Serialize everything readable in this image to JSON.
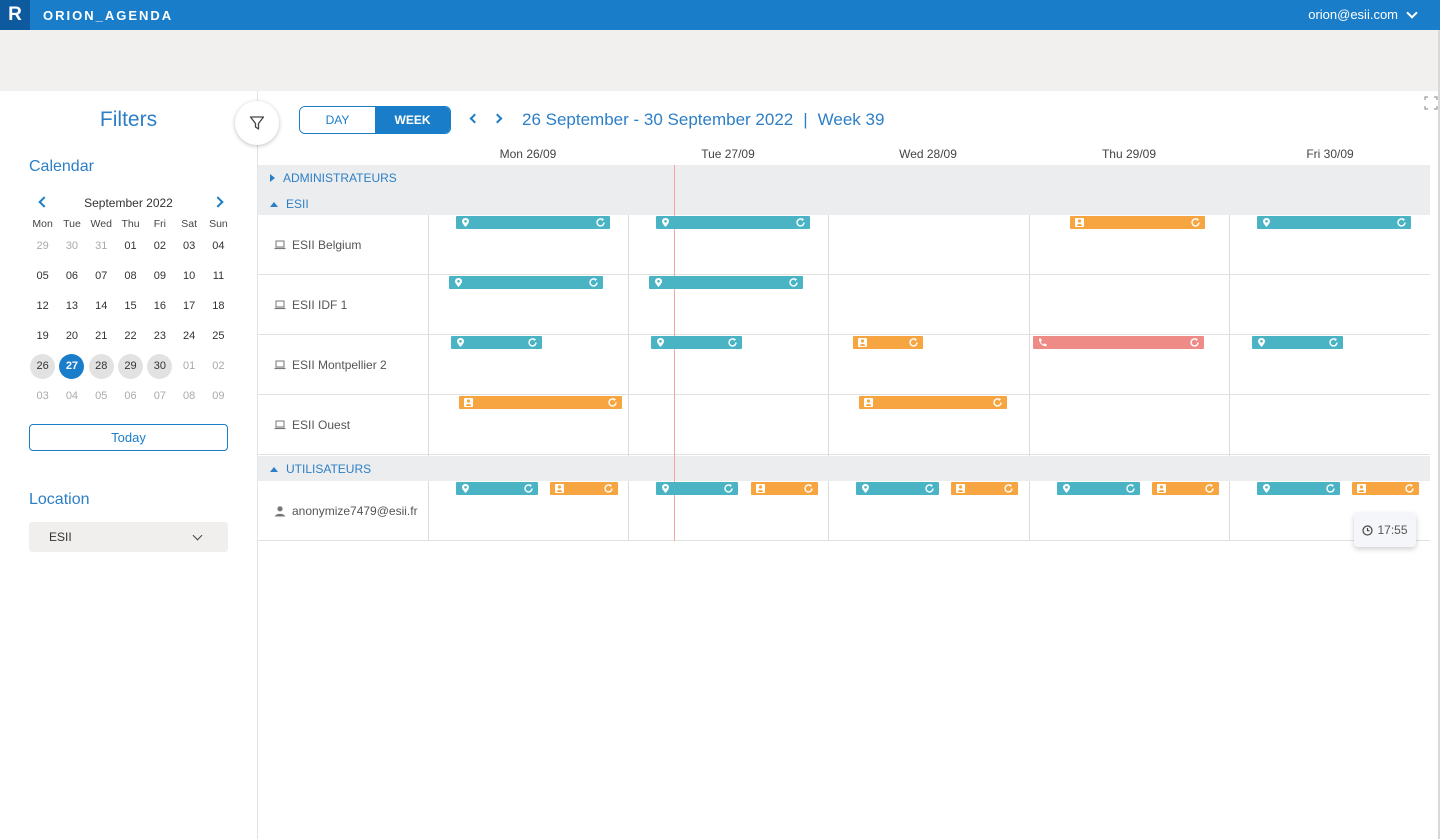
{
  "app": {
    "logo_letter": "R",
    "name": "ORION_AGENDA",
    "user_email": "orion@esii.com"
  },
  "sidebar": {
    "title": "Filters",
    "calendar_title": "Calendar",
    "month_label": "September 2022",
    "weekdays": [
      "Mon",
      "Tue",
      "Wed",
      "Thu",
      "Fri",
      "Sat",
      "Sun"
    ],
    "weeks": [
      [
        "29",
        "30",
        "31",
        "01",
        "02",
        "03",
        "04"
      ],
      [
        "05",
        "06",
        "07",
        "08",
        "09",
        "10",
        "11"
      ],
      [
        "12",
        "13",
        "14",
        "15",
        "16",
        "17",
        "18"
      ],
      [
        "19",
        "20",
        "21",
        "22",
        "23",
        "24",
        "25"
      ],
      [
        "26",
        "27",
        "28",
        "29",
        "30",
        "01",
        "02"
      ],
      [
        "03",
        "04",
        "05",
        "06",
        "07",
        "08",
        "09"
      ]
    ],
    "today_label": "Today",
    "location_title": "Location",
    "location_value": "ESII"
  },
  "toolbar": {
    "day_label": "DAY",
    "week_label": "WEEK",
    "range_label": "26 September - 30 September 2022",
    "separator": "|",
    "week_number": "Week 39"
  },
  "days": [
    "Mon 26/09",
    "Tue 27/09",
    "Wed 28/09",
    "Thu 29/09",
    "Fri 30/09"
  ],
  "groups": {
    "admins": "ADMINISTRATEURS",
    "esii": "ESII",
    "users": "UTILISATEURS"
  },
  "resources": {
    "belgium": "ESII Belgium",
    "idf": "ESII IDF 1",
    "montpellier": "ESII Montpellier 2",
    "ouest": "ESII Ouest",
    "user": "anonymize7479@esii.fr"
  },
  "current_time": "17:55",
  "colors": {
    "primary": "#1a7dc9",
    "onsite": "#4ab4c4",
    "remote": "#f7a540",
    "call": "#ef8b87"
  }
}
